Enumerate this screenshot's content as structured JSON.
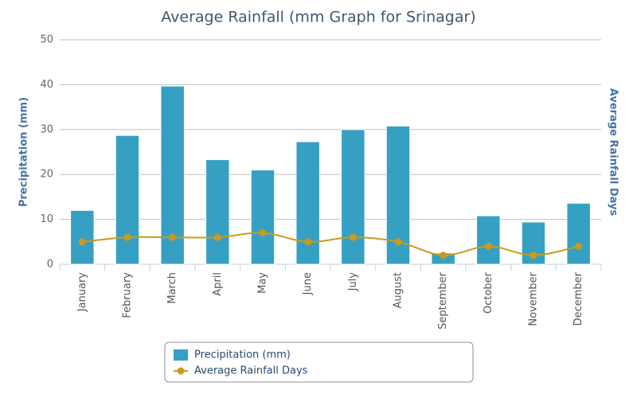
{
  "chart_data": {
    "type": "bar",
    "title": "Average Rainfall (mm Graph for Srinagar)",
    "y_label": "Precipitation (mm)",
    "y2_label": "Average Rainfall Days",
    "categories": [
      "January",
      "February",
      "March",
      "April",
      "May",
      "June",
      "July",
      "August",
      "September",
      "October",
      "November",
      "December"
    ],
    "series": [
      {
        "name": "Precipitation (mm)",
        "type": "bar",
        "color": "#36a0c3",
        "values": [
          12,
          28.7,
          39.7,
          23.3,
          21,
          27.3,
          30,
          30.8,
          2.5,
          10.8,
          9.4,
          13.6
        ]
      },
      {
        "name": "Average Rainfall Days",
        "type": "line",
        "color": "#c99a1b",
        "values": [
          5,
          6,
          6,
          6,
          7,
          5,
          6,
          5,
          2,
          4,
          2,
          4
        ]
      }
    ],
    "ylim": [
      0,
      50
    ],
    "yticks": [
      0,
      10,
      20,
      30,
      40,
      50
    ],
    "grid": true
  }
}
